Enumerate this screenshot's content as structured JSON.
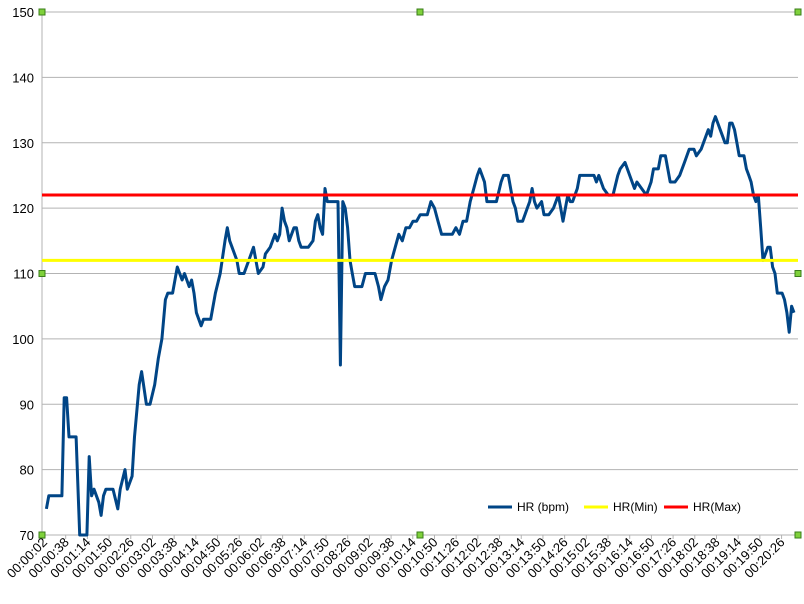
{
  "chart_data": {
    "type": "line",
    "title": "",
    "xlabel": "",
    "ylabel": "",
    "ylim": [
      70,
      150
    ],
    "y_ticks": [
      70,
      80,
      90,
      100,
      110,
      120,
      130,
      140,
      150
    ],
    "grid": "horizontal",
    "legend_position": "bottom-right",
    "x_tick_labels": [
      "00:00:02",
      "00:00:38",
      "00:01:14",
      "00:01:50",
      "00:02:26",
      "00:03:02",
      "00:03:38",
      "00:04:14",
      "00:04:50",
      "00:05:26",
      "00:06:02",
      "00:06:38",
      "00:07:14",
      "00:07:50",
      "00:08:26",
      "00:09:02",
      "00:09:38",
      "00:10:14",
      "00:10:50",
      "00:11:26",
      "00:12:02",
      "00:12:38",
      "00:13:14",
      "00:13:50",
      "00:14:26",
      "00:15:02",
      "00:15:38",
      "00:16:14",
      "00:16:50",
      "00:17:26",
      "00:18:02",
      "00:18:38",
      "00:19:14",
      "00:19:50",
      "00:20:26"
    ],
    "x_seconds_range": [
      2,
      1282
    ],
    "series": [
      {
        "name": "HR (bpm)",
        "color": "#004586",
        "points": [
          [
            2,
            74
          ],
          [
            4,
            76
          ],
          [
            15,
            76
          ],
          [
            17,
            91
          ],
          [
            19,
            91
          ],
          [
            21,
            85
          ],
          [
            27,
            85
          ],
          [
            30,
            70
          ],
          [
            33,
            70
          ],
          [
            36,
            70
          ],
          [
            38,
            82
          ],
          [
            40,
            76
          ],
          [
            42,
            77
          ],
          [
            46,
            75
          ],
          [
            48,
            73
          ],
          [
            50,
            76
          ],
          [
            52,
            77
          ],
          [
            58,
            77
          ],
          [
            62,
            74
          ],
          [
            64,
            77
          ],
          [
            68,
            80
          ],
          [
            70,
            77
          ],
          [
            74,
            79
          ],
          [
            76,
            85
          ],
          [
            80,
            93
          ],
          [
            82,
            95
          ],
          [
            86,
            90
          ],
          [
            89,
            90
          ],
          [
            93,
            93
          ],
          [
            96,
            97
          ],
          [
            99,
            100
          ],
          [
            102,
            106
          ],
          [
            104,
            107
          ],
          [
            108,
            107
          ],
          [
            112,
            111
          ],
          [
            116,
            109
          ],
          [
            118,
            110
          ],
          [
            122,
            108
          ],
          [
            124,
            109
          ],
          [
            126,
            107
          ],
          [
            128,
            104
          ],
          [
            130,
            103
          ],
          [
            132,
            102
          ],
          [
            134,
            103
          ],
          [
            140,
            103
          ],
          [
            144,
            107
          ],
          [
            148,
            110
          ],
          [
            152,
            115
          ],
          [
            154,
            117
          ],
          [
            156,
            115
          ],
          [
            158,
            114
          ],
          [
            160,
            113
          ],
          [
            162,
            112
          ],
          [
            164,
            110
          ],
          [
            168,
            110
          ],
          [
            172,
            112
          ],
          [
            176,
            114
          ],
          [
            178,
            112
          ],
          [
            180,
            110
          ],
          [
            184,
            111
          ],
          [
            186,
            113
          ],
          [
            190,
            114
          ],
          [
            194,
            116
          ],
          [
            196,
            115
          ],
          [
            198,
            116
          ],
          [
            200,
            120
          ],
          [
            202,
            118
          ],
          [
            204,
            117
          ],
          [
            206,
            115
          ],
          [
            210,
            117
          ],
          [
            212,
            117
          ],
          [
            214,
            115
          ],
          [
            216,
            114
          ],
          [
            222,
            114
          ],
          [
            226,
            115
          ],
          [
            228,
            118
          ],
          [
            230,
            119
          ],
          [
            232,
            117
          ],
          [
            234,
            116
          ],
          [
            236,
            123
          ],
          [
            238,
            121
          ],
          [
            244,
            121
          ],
          [
            247,
            121
          ],
          [
            249,
            96
          ],
          [
            251,
            121
          ],
          [
            253,
            120
          ],
          [
            255,
            117
          ],
          [
            257,
            112
          ],
          [
            259,
            110
          ],
          [
            261,
            108
          ],
          [
            267,
            108
          ],
          [
            270,
            110
          ],
          [
            278,
            110
          ],
          [
            281,
            108
          ],
          [
            283,
            106
          ],
          [
            286,
            108
          ],
          [
            289,
            109
          ],
          [
            292,
            112
          ],
          [
            295,
            114
          ],
          [
            298,
            116
          ],
          [
            301,
            115
          ],
          [
            304,
            117
          ],
          [
            307,
            117
          ],
          [
            310,
            118
          ],
          [
            313,
            118
          ],
          [
            316,
            119
          ],
          [
            319,
            119
          ],
          [
            322,
            119
          ],
          [
            325,
            121
          ],
          [
            328,
            120
          ],
          [
            331,
            118
          ],
          [
            334,
            116
          ],
          [
            337,
            116
          ],
          [
            343,
            116
          ],
          [
            346,
            117
          ],
          [
            349,
            116
          ],
          [
            352,
            118
          ],
          [
            355,
            118
          ],
          [
            358,
            121
          ],
          [
            361,
            123
          ],
          [
            364,
            125
          ],
          [
            366,
            126
          ],
          [
            370,
            124
          ],
          [
            372,
            121
          ],
          [
            376,
            121
          ],
          [
            380,
            121
          ],
          [
            384,
            124
          ],
          [
            386,
            125
          ],
          [
            390,
            125
          ],
          [
            394,
            121
          ],
          [
            396,
            120
          ],
          [
            398,
            118
          ],
          [
            402,
            118
          ],
          [
            406,
            120
          ],
          [
            408,
            121
          ],
          [
            410,
            123
          ],
          [
            412,
            121
          ],
          [
            414,
            120
          ],
          [
            418,
            121
          ],
          [
            420,
            119
          ],
          [
            424,
            119
          ],
          [
            428,
            120
          ],
          [
            432,
            122
          ],
          [
            434,
            120
          ],
          [
            436,
            118
          ],
          [
            440,
            122
          ],
          [
            442,
            121
          ],
          [
            444,
            121
          ],
          [
            448,
            123
          ],
          [
            450,
            125
          ],
          [
            458,
            125
          ],
          [
            462,
            125
          ],
          [
            464,
            124
          ],
          [
            466,
            125
          ],
          [
            470,
            123
          ],
          [
            474,
            122
          ],
          [
            478,
            122
          ],
          [
            482,
            125
          ],
          [
            484,
            126
          ],
          [
            488,
            127
          ],
          [
            492,
            125
          ],
          [
            496,
            123
          ],
          [
            498,
            124
          ],
          [
            502,
            123
          ],
          [
            506,
            122
          ],
          [
            510,
            124
          ],
          [
            512,
            126
          ],
          [
            516,
            126
          ],
          [
            518,
            128
          ],
          [
            522,
            128
          ],
          [
            524,
            126
          ],
          [
            526,
            124
          ],
          [
            530,
            124
          ],
          [
            534,
            125
          ],
          [
            538,
            127
          ],
          [
            542,
            129
          ],
          [
            546,
            129
          ],
          [
            548,
            128
          ],
          [
            552,
            129
          ],
          [
            556,
            131
          ],
          [
            558,
            132
          ],
          [
            560,
            131
          ],
          [
            562,
            133
          ],
          [
            564,
            134
          ],
          [
            566,
            133
          ],
          [
            568,
            132
          ],
          [
            570,
            131
          ],
          [
            572,
            130
          ],
          [
            574,
            130
          ],
          [
            576,
            133
          ],
          [
            578,
            133
          ],
          [
            580,
            132
          ],
          [
            582,
            130
          ],
          [
            584,
            128
          ],
          [
            586,
            128
          ],
          [
            588,
            128
          ],
          [
            590,
            126
          ],
          [
            592,
            125
          ],
          [
            594,
            124
          ],
          [
            596,
            122
          ],
          [
            598,
            121
          ],
          [
            600,
            122
          ],
          [
            602,
            117
          ],
          [
            604,
            112
          ],
          [
            606,
            113
          ],
          [
            608,
            114
          ],
          [
            610,
            114
          ],
          [
            612,
            111
          ],
          [
            614,
            110
          ],
          [
            616,
            107
          ],
          [
            620,
            107
          ],
          [
            622,
            106
          ],
          [
            624,
            104
          ],
          [
            626,
            101
          ],
          [
            628,
            105
          ],
          [
            630,
            104
          ]
        ],
        "x_unit_note": "points x in samples"
      },
      {
        "name": "HR(Min)",
        "color": "#ffff00",
        "value": 112
      },
      {
        "name": "HR(Max)",
        "color": "#ff0000",
        "value": 122
      }
    ]
  }
}
